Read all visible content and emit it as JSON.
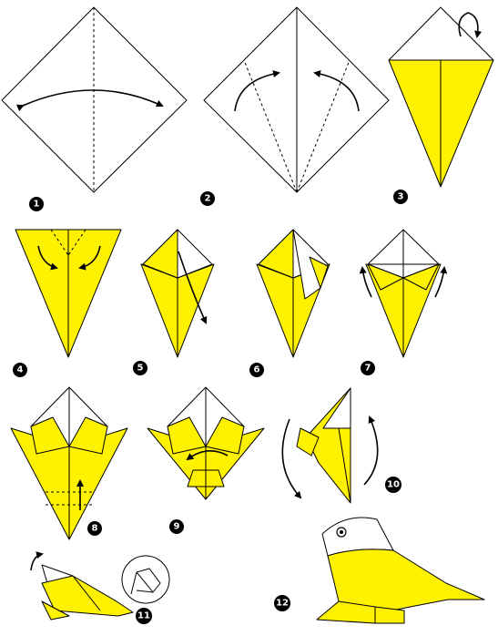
{
  "steps": [
    {
      "number": "1"
    },
    {
      "number": "2"
    },
    {
      "number": "3"
    },
    {
      "number": "4"
    },
    {
      "number": "5"
    },
    {
      "number": "6"
    },
    {
      "number": "7"
    },
    {
      "number": "8"
    },
    {
      "number": "9"
    },
    {
      "number": "10"
    },
    {
      "number": "11"
    },
    {
      "number": "12"
    }
  ],
  "colors": {
    "paper_front": "#fff200",
    "paper_back": "#ffffff",
    "line": "#000000"
  }
}
